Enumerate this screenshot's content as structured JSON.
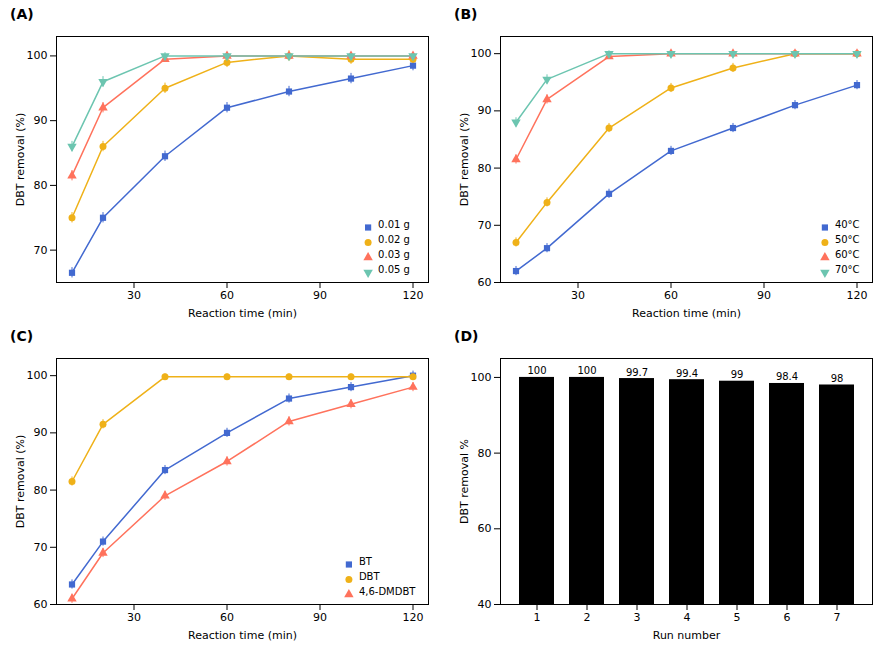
{
  "chart_data": [
    {
      "type": "line",
      "title": "(A)",
      "xlabel": "Reaction time (min)",
      "ylabel": "DBT removal (%)",
      "xlim": [
        5,
        125
      ],
      "ylim": [
        65,
        103
      ],
      "xticks": [
        30,
        60,
        90,
        120
      ],
      "yticks": [
        70,
        80,
        90,
        100
      ],
      "grid": false,
      "legend": "lower-right",
      "x": [
        10,
        20,
        40,
        60,
        80,
        100,
        120
      ],
      "series": [
        {
          "name": "0.01 g",
          "marker": "square",
          "values": [
            66.5,
            75.0,
            84.5,
            92.0,
            94.5,
            96.5,
            98.5
          ],
          "yerr": [
            0.8,
            0.8,
            0.8,
            0.8,
            0.8,
            0.8,
            0.8
          ]
        },
        {
          "name": "0.02 g",
          "marker": "circle",
          "values": [
            75.0,
            86.0,
            95.0,
            99.0,
            100.0,
            99.5,
            99.5
          ],
          "yerr": [
            0.8,
            0.8,
            0.8,
            0.8,
            0.8,
            0.8,
            0.8
          ]
        },
        {
          "name": "0.03 g",
          "marker": "triangle-up",
          "values": [
            81.5,
            92.0,
            99.5,
            100.0,
            100.0,
            100.0,
            100.0
          ],
          "yerr": [
            0.8,
            0.8,
            0.5,
            0.5,
            0.5,
            0.5,
            0.5
          ]
        },
        {
          "name": "0.05 g",
          "marker": "triangle-down",
          "values": [
            86.0,
            96.0,
            100.0,
            100.0,
            100.0,
            100.0,
            100.0
          ],
          "yerr": [
            0.8,
            0.8,
            0.5,
            0.5,
            0.5,
            0.5,
            0.5
          ]
        }
      ]
    },
    {
      "type": "line",
      "title": "(B)",
      "xlabel": "Reaction time (min)",
      "ylabel": "DBT removal (%)",
      "xlim": [
        5,
        125
      ],
      "ylim": [
        60,
        103
      ],
      "xticks": [
        30,
        60,
        90,
        120
      ],
      "yticks": [
        60,
        70,
        80,
        90,
        100
      ],
      "grid": false,
      "legend": "lower-right",
      "x": [
        10,
        20,
        40,
        60,
        80,
        100,
        120
      ],
      "series": [
        {
          "name": "40°C",
          "marker": "square",
          "values": [
            62.0,
            66.0,
            75.5,
            83.0,
            87.0,
            91.0,
            94.5
          ],
          "yerr": [
            0.8,
            0.8,
            0.8,
            0.8,
            0.8,
            0.8,
            0.8
          ]
        },
        {
          "name": "50°C",
          "marker": "circle",
          "values": [
            67.0,
            74.0,
            87.0,
            94.0,
            97.5,
            100.0,
            100.0
          ],
          "yerr": [
            0.8,
            0.8,
            0.8,
            0.8,
            0.8,
            0.5,
            0.5
          ]
        },
        {
          "name": "60°C",
          "marker": "triangle-up",
          "values": [
            81.5,
            92.0,
            99.5,
            100.0,
            100.0,
            100.0,
            100.0
          ],
          "yerr": [
            0.8,
            0.8,
            0.5,
            0.5,
            0.5,
            0.5,
            0.5
          ]
        },
        {
          "name": "70°C",
          "marker": "triangle-down",
          "values": [
            88.0,
            95.5,
            100.0,
            100.0,
            100.0,
            100.0,
            100.0
          ],
          "yerr": [
            0.8,
            0.8,
            0.5,
            0.5,
            0.5,
            0.5,
            0.5
          ]
        }
      ]
    },
    {
      "type": "line",
      "title": "(C)",
      "xlabel": "Reaction time (min)",
      "ylabel": "DBT removal (%)",
      "xlim": [
        5,
        125
      ],
      "ylim": [
        60,
        103
      ],
      "xticks": [
        30,
        60,
        90,
        120
      ],
      "yticks": [
        60,
        70,
        80,
        90,
        100
      ],
      "grid": false,
      "legend": "lower-right",
      "x": [
        10,
        20,
        40,
        60,
        80,
        100,
        120
      ],
      "series": [
        {
          "name": "BT",
          "marker": "square",
          "values": [
            63.5,
            71.0,
            83.5,
            90.0,
            96.0,
            98.0,
            100.0
          ],
          "yerr": [
            0.8,
            0.8,
            0.8,
            0.8,
            0.8,
            0.8,
            0.8
          ]
        },
        {
          "name": "DBT",
          "marker": "circle",
          "values": [
            81.5,
            91.5,
            99.8,
            99.8,
            99.8,
            99.8,
            99.8
          ],
          "yerr": [
            0.8,
            0.8,
            0.5,
            0.5,
            0.5,
            0.5,
            0.5
          ]
        },
        {
          "name": "4,6-DMDBT",
          "marker": "triangle-up",
          "values": [
            61.0,
            69.0,
            79.0,
            85.0,
            92.0,
            95.0,
            98.0
          ],
          "yerr": [
            0.8,
            0.8,
            0.8,
            0.8,
            0.8,
            0.8,
            0.8
          ]
        }
      ]
    },
    {
      "type": "bar",
      "title": "(D)",
      "xlabel": "Run number",
      "ylabel": "DBT removal %",
      "categories": [
        1,
        2,
        3,
        4,
        5,
        6,
        7
      ],
      "values": [
        100,
        100,
        99.7,
        99.4,
        99,
        98.4,
        98
      ],
      "ylim": [
        40,
        105
      ],
      "yticks": [
        40,
        60,
        80,
        100
      ],
      "grid": false,
      "data_labels": true
    }
  ]
}
